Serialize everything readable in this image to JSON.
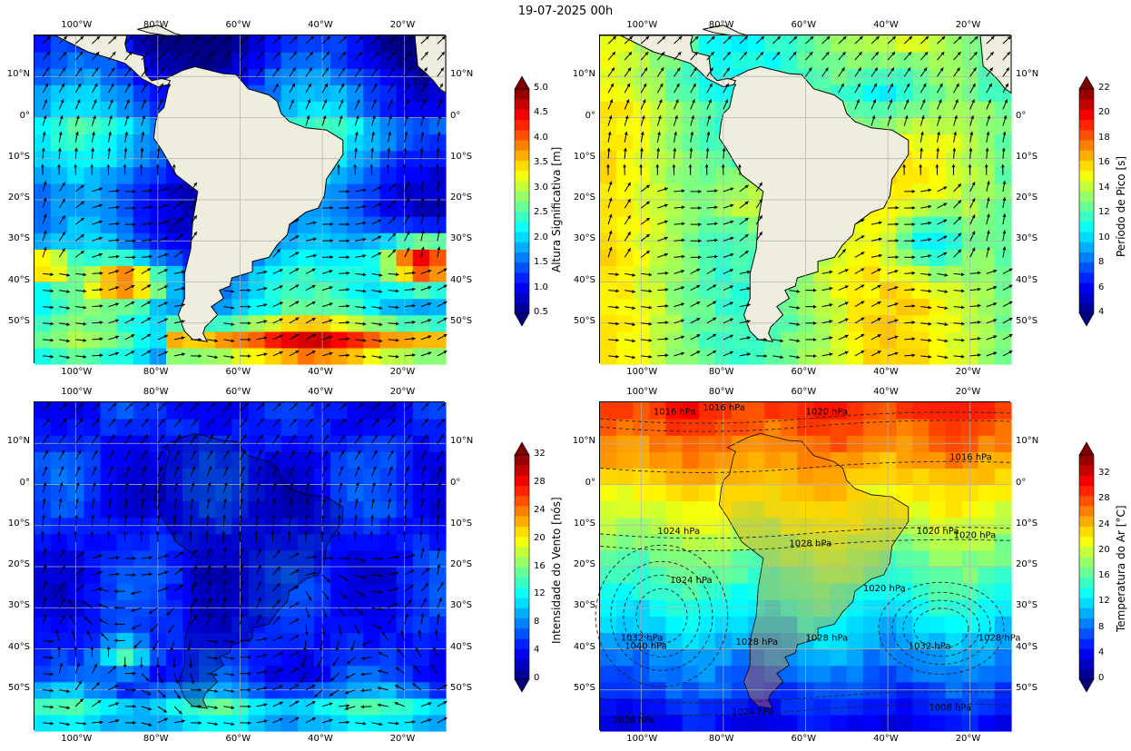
{
  "title": "19-07-2025 00h",
  "axes": {
    "lon_labels": [
      "100°W",
      "80°W",
      "60°W",
      "40°W",
      "20°W"
    ],
    "lat_labels": [
      "10°N",
      "0°",
      "10°S",
      "20°S",
      "30°S",
      "40°S",
      "50°S"
    ]
  },
  "panels": [
    {
      "id": "wave-height",
      "colorbar": {
        "label": "Altura Significativa [m]",
        "ticks": [
          "0.5",
          "1.0",
          "1.5",
          "2.0",
          "2.5",
          "3.0",
          "3.5",
          "4.0",
          "4.5",
          "5.0"
        ],
        "range": [
          0.5,
          5.0
        ]
      }
    },
    {
      "id": "peak-period",
      "colorbar": {
        "label": "Período de Pico [s]",
        "ticks": [
          "4",
          "6",
          "8",
          "10",
          "12",
          "14",
          "16",
          "18",
          "20",
          "22"
        ],
        "range": [
          4,
          22
        ]
      }
    },
    {
      "id": "wind-speed",
      "colorbar": {
        "label": "Intensidade do Vento [nós]",
        "ticks": [
          "0",
          "4",
          "8",
          "12",
          "16",
          "20",
          "24",
          "28",
          "32"
        ],
        "range": [
          0,
          32
        ]
      }
    },
    {
      "id": "air-temp",
      "colorbar": {
        "label": "Temperatura do Ar [°C]",
        "ticks": [
          "0",
          "4",
          "8",
          "12",
          "16",
          "20",
          "24",
          "28",
          "32"
        ],
        "range": [
          0,
          35
        ]
      },
      "isobars": [
        "1016 hPa",
        "1020 hPa",
        "1016 hPa",
        "1016 hPa",
        "1020 hPa",
        "1024 hPa",
        "1024 hPa",
        "1028 hPa",
        "1032 hPa",
        "1040 hPa",
        "1032 hPa",
        "1028 hPa",
        "1028 hPa",
        "1028 hPa",
        "1020 hPa",
        "1020 hPa",
        "1008 hPa",
        "1036 hPa",
        "1024 hPa"
      ]
    }
  ]
}
